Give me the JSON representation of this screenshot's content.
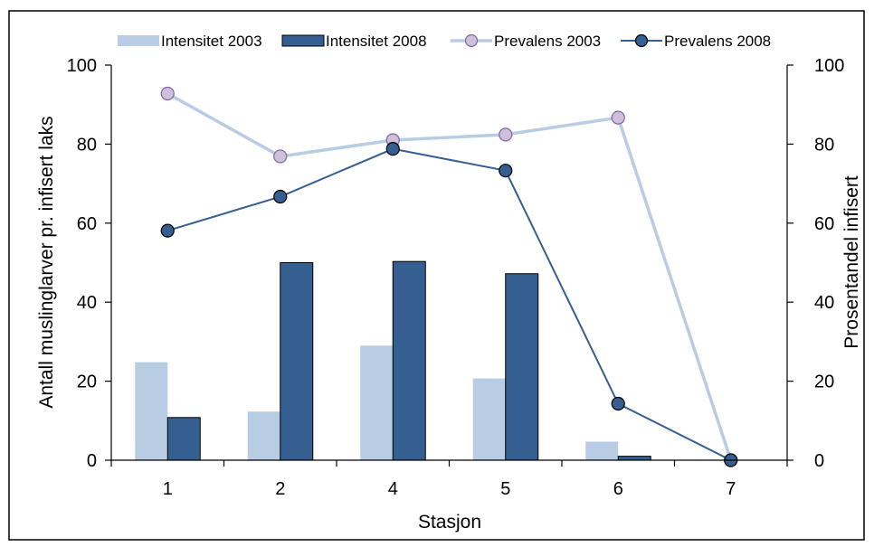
{
  "chart_data": {
    "type": "bar",
    "title": "",
    "xlabel": "Stasjon",
    "ylabel": "Antall muslinglarver pr. infisert laks",
    "y2label": "Prosentandel infisert",
    "categories": [
      "1",
      "2",
      "4",
      "5",
      "6",
      "7"
    ],
    "ylim": [
      0,
      100
    ],
    "y2lim": [
      0,
      100
    ],
    "yticks": [
      0,
      20,
      40,
      60,
      80,
      100
    ],
    "y2ticks": [
      0,
      20,
      40,
      60,
      80,
      100
    ],
    "legend_position": "top",
    "grid": false,
    "series": [
      {
        "name": "Intensitet 2003",
        "kind": "bar",
        "axis": "left",
        "color": "#b8cce4",
        "values": [
          24.8,
          12.3,
          29.0,
          20.7,
          4.7,
          0
        ]
      },
      {
        "name": "Intensitet 2008",
        "kind": "bar",
        "axis": "left",
        "color": "#365f91",
        "values": [
          10.8,
          50.0,
          50.3,
          47.2,
          1.0,
          0
        ]
      },
      {
        "name": "Prevalens 2003",
        "kind": "line",
        "axis": "right",
        "color": "#b8cce4",
        "marker_fill": "#ccc0da",
        "values": [
          92.8,
          76.9,
          81.0,
          82.4,
          86.7,
          0
        ]
      },
      {
        "name": "Prevalens 2008",
        "kind": "line",
        "axis": "right",
        "color": "#365f91",
        "marker_fill": "#365f91",
        "values": [
          58.1,
          66.7,
          78.8,
          73.3,
          14.3,
          0
        ]
      }
    ]
  }
}
